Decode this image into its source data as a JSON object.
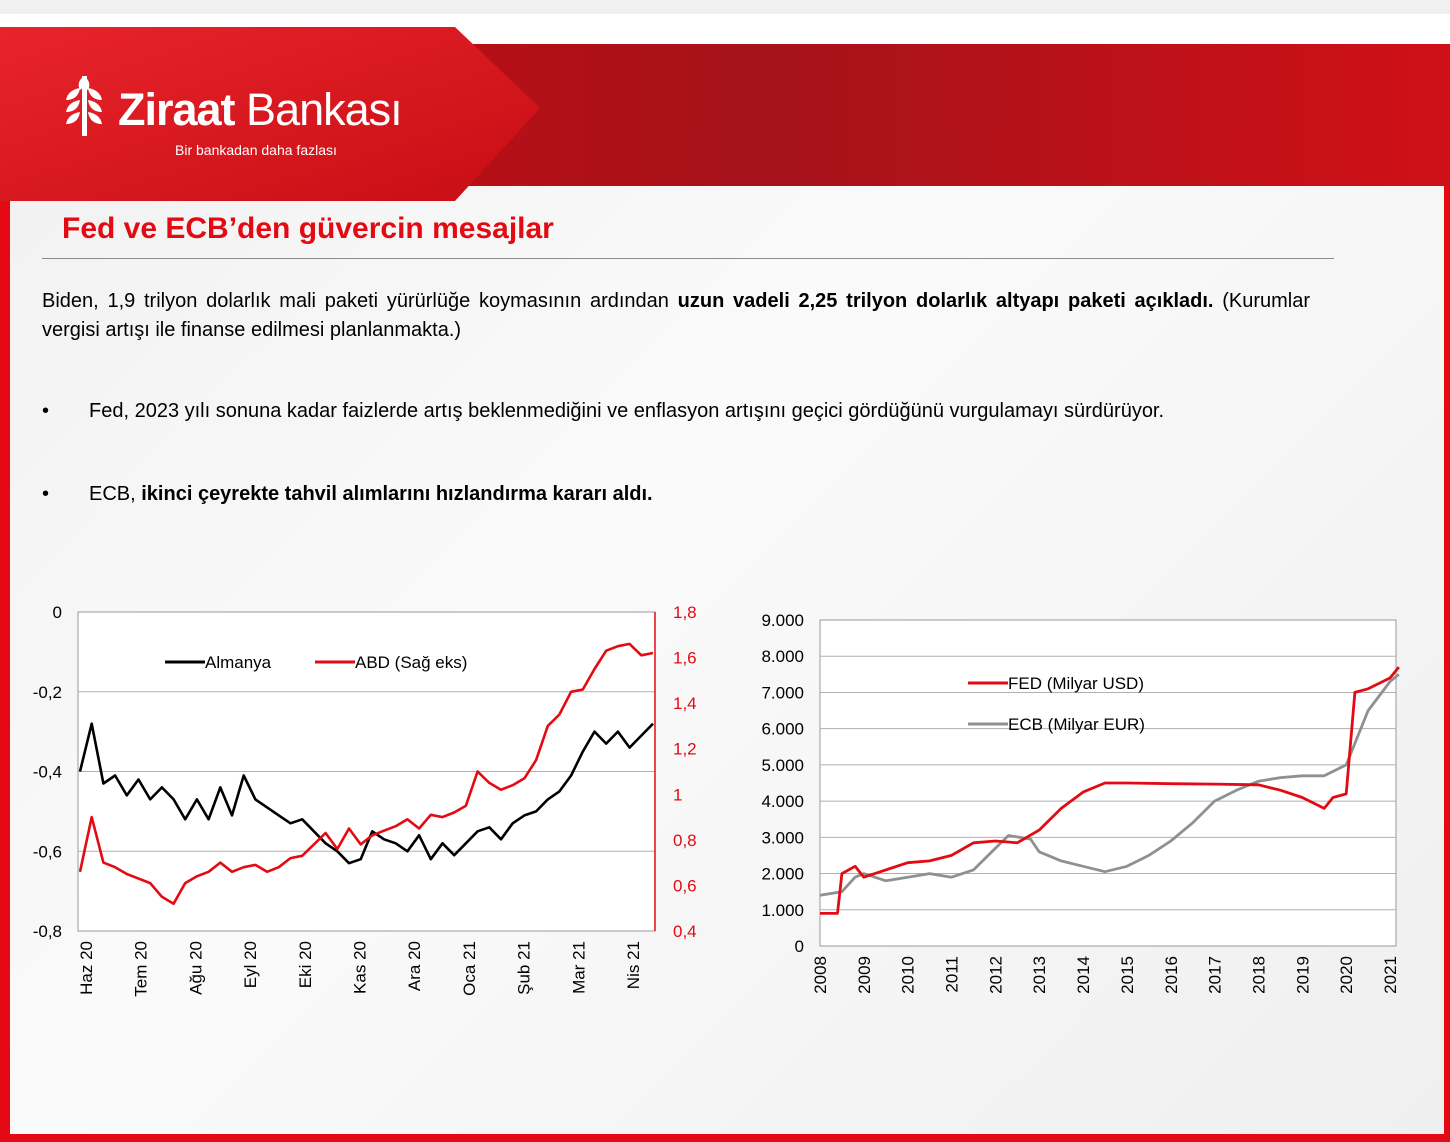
{
  "brand": {
    "name_bold": "Ziraat",
    "name_regular": " Bankası",
    "tagline": "Bir bankadan daha fazlası",
    "color": "#e30a13"
  },
  "slide": {
    "title": "Fed ve ECB’den güvercin mesajlar",
    "para_text_a": "Biden, 1,9 trilyon dolarlık mali paketi yürürlüğe koymasının ardından ",
    "para_bold": "uzun vadeli 2,25 trilyon dolarlık altyapı paketi açıkladı.",
    "para_text_b": " (Kurumlar vergisi artışı ile finanse edilmesi planlanmakta.)",
    "bullet_char": "•",
    "bullet1": "Fed, 2023 yılı sonuna kadar faizlerde artış beklenmediğini ve enflasyon artışını geçici gördüğünü vurgulamayı sürdürüyor.",
    "bullet2_a": "ECB, ",
    "bullet2_bold": "ikinci çeyrekte tahvil alımlarını hızlandırma kararı aldı."
  },
  "chart_data": [
    {
      "type": "line",
      "title": "",
      "x_ticks": [
        "Haz 20",
        "Tem 20",
        "Ağu 20",
        "Eyl 20",
        "Eki 20",
        "Kas 20",
        "Ara 20",
        "Oca 21",
        "Şub 21",
        "Mar 21",
        "Nis 21"
      ],
      "y_left": {
        "ticks": [
          "0",
          "-0,2",
          "-0,4",
          "-0,6",
          "-0,8"
        ],
        "range": [
          -0.8,
          0
        ]
      },
      "y_right": {
        "ticks": [
          "1,8",
          "1,6",
          "1,4",
          "1,2",
          "1",
          "0,8",
          "0,6",
          "0,4"
        ],
        "range": [
          0.4,
          1.8
        ],
        "color": "#e30a13"
      },
      "legend_position": "top",
      "grid": "horizontal",
      "series": [
        {
          "name": "Almanya",
          "axis": "left",
          "color": "#000000",
          "values": [
            -0.4,
            -0.28,
            -0.43,
            -0.41,
            -0.46,
            -0.42,
            -0.47,
            -0.44,
            -0.47,
            -0.52,
            -0.47,
            -0.52,
            -0.44,
            -0.51,
            -0.41,
            -0.47,
            -0.49,
            -0.51,
            -0.53,
            -0.52,
            -0.55,
            -0.58,
            -0.6,
            -0.63,
            -0.62,
            -0.55,
            -0.57,
            -0.58,
            -0.6,
            -0.56,
            -0.62,
            -0.58,
            -0.61,
            -0.58,
            -0.55,
            -0.54,
            -0.57,
            -0.53,
            -0.51,
            -0.5,
            -0.47,
            -0.45,
            -0.41,
            -0.35,
            -0.3,
            -0.33,
            -0.3,
            -0.34,
            -0.31,
            -0.28
          ]
        },
        {
          "name": "ABD (Sağ eks)",
          "axis": "right",
          "color": "#e30a13",
          "values": [
            0.66,
            0.9,
            0.7,
            0.68,
            0.65,
            0.63,
            0.61,
            0.55,
            0.52,
            0.61,
            0.64,
            0.66,
            0.7,
            0.66,
            0.68,
            0.69,
            0.66,
            0.68,
            0.72,
            0.73,
            0.78,
            0.83,
            0.76,
            0.85,
            0.78,
            0.82,
            0.84,
            0.86,
            0.89,
            0.85,
            0.91,
            0.9,
            0.92,
            0.95,
            1.1,
            1.05,
            1.02,
            1.04,
            1.07,
            1.15,
            1.3,
            1.35,
            1.45,
            1.46,
            1.55,
            1.63,
            1.65,
            1.66,
            1.61,
            1.62
          ]
        }
      ]
    },
    {
      "type": "line",
      "title": "",
      "x_ticks": [
        "2008",
        "2009",
        "2010",
        "2011",
        "2012",
        "2013",
        "2014",
        "2015",
        "2016",
        "2017",
        "2018",
        "2019",
        "2020",
        "2021"
      ],
      "x_range": [
        2008,
        2021
      ],
      "y_ticks": [
        "9.000",
        "8.000",
        "7.000",
        "6.000",
        "5.000",
        "4.000",
        "3.000",
        "2.000",
        "1.000",
        "0"
      ],
      "y_range": [
        0,
        9000
      ],
      "legend_position": "right-middle",
      "grid": "horizontal",
      "series": [
        {
          "name": "FED (Milyar USD)",
          "color": "#e30a13",
          "x": [
            2008,
            2008.4,
            2008.5,
            2008.8,
            2009,
            2009.5,
            2010,
            2010.5,
            2011,
            2011.5,
            2012,
            2012.5,
            2013,
            2013.5,
            2014,
            2014.5,
            2015,
            2016,
            2017,
            2018,
            2018.5,
            2019,
            2019.5,
            2019.7,
            2020,
            2020.2,
            2020.5,
            2021,
            2021.2
          ],
          "values": [
            900,
            900,
            2000,
            2200,
            1900,
            2100,
            2300,
            2350,
            2500,
            2850,
            2900,
            2850,
            3200,
            3800,
            4250,
            4500,
            4500,
            4480,
            4470,
            4450,
            4300,
            4100,
            3800,
            4100,
            4200,
            7000,
            7100,
            7400,
            7700
          ]
        },
        {
          "name": "ECB (Milyar EUR)",
          "color": "#909090",
          "x": [
            2008,
            2008.5,
            2008.8,
            2009,
            2009.5,
            2010,
            2010.5,
            2011,
            2011.5,
            2012,
            2012.3,
            2012.8,
            2013,
            2013.5,
            2014,
            2014.5,
            2015,
            2015.5,
            2016,
            2016.5,
            2017,
            2017.5,
            2018,
            2018.5,
            2019,
            2019.5,
            2020,
            2020.5,
            2021,
            2021.2
          ],
          "values": [
            1400,
            1500,
            1900,
            2000,
            1800,
            1900,
            2000,
            1900,
            2100,
            2700,
            3050,
            2950,
            2600,
            2350,
            2200,
            2050,
            2200,
            2500,
            2900,
            3400,
            4000,
            4300,
            4550,
            4650,
            4700,
            4700,
            5000,
            6500,
            7300,
            7500
          ]
        }
      ]
    }
  ]
}
